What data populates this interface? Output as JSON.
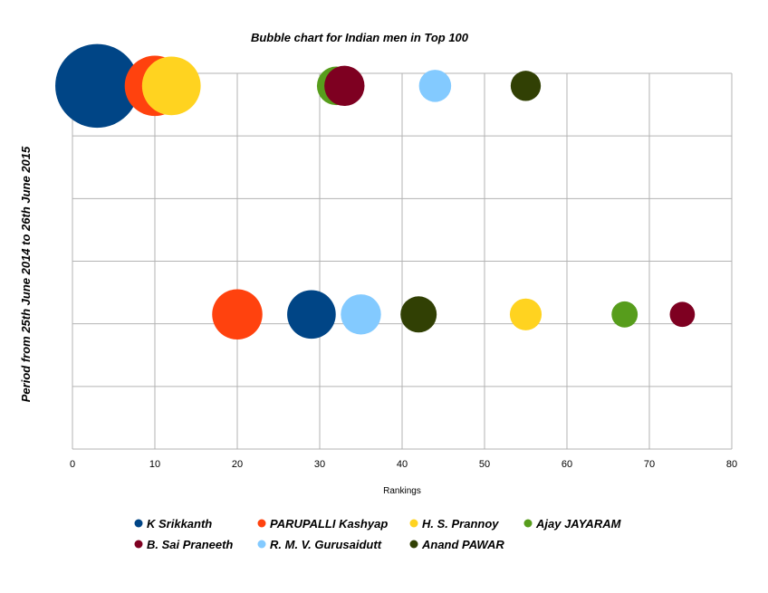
{
  "chart_data": {
    "type": "bubble",
    "title": "Bubble chart for Indian men in Top 100",
    "xlabel": "Rankings",
    "ylabel": "Period  from 25th June 2014 to 26th June 2015",
    "xlim": [
      0,
      80
    ],
    "ylim": [
      0,
      6
    ],
    "x_ticks": [
      0,
      10,
      20,
      30,
      40,
      50,
      60,
      70,
      80
    ],
    "grid": true,
    "legend_position": "bottom",
    "series": [
      {
        "name": "K Srikkanth",
        "color": "#004586",
        "points": [
          {
            "x": 3,
            "y": 5.8,
            "size": 2.5
          },
          {
            "x": 29,
            "y": 2.15,
            "size": 1.45
          }
        ]
      },
      {
        "name": "PARUPALLI Kashyap",
        "color": "#ff420e",
        "points": [
          {
            "x": 10,
            "y": 5.8,
            "size": 1.8
          },
          {
            "x": 20,
            "y": 2.15,
            "size": 1.5
          }
        ]
      },
      {
        "name": "H. S. Prannoy",
        "color": "#ffd320",
        "points": [
          {
            "x": 12,
            "y": 5.8,
            "size": 1.75
          },
          {
            "x": 55,
            "y": 2.15,
            "size": 0.95
          }
        ]
      },
      {
        "name": "Ajay JAYARAM",
        "color": "#579d1c",
        "points": [
          {
            "x": 32,
            "y": 5.8,
            "size": 1.15
          },
          {
            "x": 67,
            "y": 2.15,
            "size": 0.78
          }
        ]
      },
      {
        "name": "B. Sai Praneeth",
        "color": "#7e0021",
        "points": [
          {
            "x": 33,
            "y": 5.8,
            "size": 1.2
          },
          {
            "x": 74,
            "y": 2.15,
            "size": 0.75
          }
        ]
      },
      {
        "name": "R. M. V. Gurusaidutt",
        "color": "#83caff",
        "points": [
          {
            "x": 44,
            "y": 5.8,
            "size": 0.96
          },
          {
            "x": 35,
            "y": 2.15,
            "size": 1.2
          }
        ]
      },
      {
        "name": "Anand PAWAR",
        "color": "#314004",
        "points": [
          {
            "x": 55,
            "y": 5.8,
            "size": 0.9
          },
          {
            "x": 42,
            "y": 2.15,
            "size": 1.08
          }
        ]
      }
    ]
  }
}
